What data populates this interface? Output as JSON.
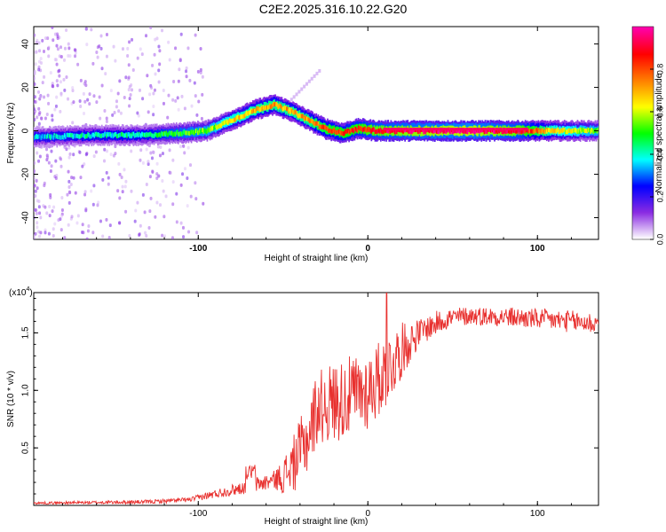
{
  "title": "C2E2.2025.316.10.22.G20",
  "colors": {
    "snr_line": "#e8312f",
    "spectrogram_bg": "#ffffff",
    "frame": "#000000"
  },
  "chart_data": [
    {
      "type": "heatmap",
      "name": "spectrogram",
      "xlabel": "Height of straight line (km)",
      "ylabel": "Frequency (Hz)",
      "xlim": [
        -197,
        136
      ],
      "ylim": [
        -50,
        48
      ],
      "xticks": [
        -100,
        0,
        100
      ],
      "yticks": [
        -40,
        -20,
        0,
        20,
        40
      ],
      "colorbar": {
        "label": "Normalized spectral amplitude",
        "range": [
          0.0,
          1.0
        ],
        "ticks": [
          "0.0",
          "0.2",
          "0.4",
          "0.6",
          "0.8"
        ],
        "tick_values": [
          0.0,
          0.2,
          0.4,
          0.6,
          0.8
        ],
        "colormap": [
          "#ffffff",
          "#8a2be2",
          "#0000ff",
          "#00ffff",
          "#00ff00",
          "#ffff00",
          "#ff7f00",
          "#ff0000",
          "#ff00aa"
        ]
      },
      "ridge": [
        {
          "x": -197,
          "f": -3,
          "amp": 0.35
        },
        {
          "x": -160,
          "f": -2,
          "amp": 0.4
        },
        {
          "x": -130,
          "f": -2,
          "amp": 0.42
        },
        {
          "x": -110,
          "f": -1,
          "amp": 0.5
        },
        {
          "x": -95,
          "f": 0,
          "amp": 0.55
        },
        {
          "x": -80,
          "f": 5,
          "amp": 0.65
        },
        {
          "x": -65,
          "f": 10,
          "amp": 0.7
        },
        {
          "x": -55,
          "f": 12,
          "amp": 0.72
        },
        {
          "x": -45,
          "f": 9,
          "amp": 0.7
        },
        {
          "x": -35,
          "f": 5,
          "amp": 0.72
        },
        {
          "x": -25,
          "f": 1,
          "amp": 0.8
        },
        {
          "x": -15,
          "f": -1,
          "amp": 0.82
        },
        {
          "x": -5,
          "f": 1,
          "amp": 0.85
        },
        {
          "x": 5,
          "f": 0,
          "amp": 0.9
        },
        {
          "x": 30,
          "f": 0,
          "amp": 0.95
        },
        {
          "x": 60,
          "f": 0,
          "amp": 0.98
        },
        {
          "x": 90,
          "f": 0,
          "amp": 0.9
        },
        {
          "x": 110,
          "f": 0,
          "amp": 0.65
        },
        {
          "x": 136,
          "f": 0,
          "amp": 0.55
        }
      ]
    },
    {
      "type": "line",
      "name": "snr",
      "xlabel": "Height of straight line (km)",
      "ylabel": "SNR (10 * v/v)",
      "exponent_label": "(x10",
      "exponent_power": "4",
      "xlim": [
        -197,
        136
      ],
      "ylim": [
        0,
        1.85
      ],
      "xticks": [
        -100,
        0,
        100
      ],
      "yticks": [
        0.5,
        1.0,
        1.5
      ],
      "ytick_labels": [
        "0.5",
        "1.0",
        "1.5"
      ],
      "envelope": [
        {
          "x": -197,
          "y": 0.02
        },
        {
          "x": -130,
          "y": 0.03
        },
        {
          "x": -105,
          "y": 0.05
        },
        {
          "x": -90,
          "y": 0.1
        },
        {
          "x": -75,
          "y": 0.15
        },
        {
          "x": -60,
          "y": 0.2
        },
        {
          "x": -50,
          "y": 0.25
        },
        {
          "x": -42,
          "y": 0.4
        },
        {
          "x": -35,
          "y": 0.6
        },
        {
          "x": -30,
          "y": 0.85
        },
        {
          "x": -20,
          "y": 0.9
        },
        {
          "x": -10,
          "y": 0.95
        },
        {
          "x": 0,
          "y": 1.0
        },
        {
          "x": 10,
          "y": 1.15
        },
        {
          "x": 20,
          "y": 1.35
        },
        {
          "x": 30,
          "y": 1.5
        },
        {
          "x": 45,
          "y": 1.62
        },
        {
          "x": 60,
          "y": 1.65
        },
        {
          "x": 80,
          "y": 1.64
        },
        {
          "x": 100,
          "y": 1.62
        },
        {
          "x": 120,
          "y": 1.6
        },
        {
          "x": 136,
          "y": 1.58
        }
      ],
      "noise": [
        {
          "x": -197,
          "a": 0.01
        },
        {
          "x": -105,
          "a": 0.02
        },
        {
          "x": -80,
          "a": 0.05
        },
        {
          "x": -55,
          "a": 0.08
        },
        {
          "x": -40,
          "a": 0.3
        },
        {
          "x": -20,
          "a": 0.35
        },
        {
          "x": 0,
          "a": 0.35
        },
        {
          "x": 15,
          "a": 0.3
        },
        {
          "x": 30,
          "a": 0.12
        },
        {
          "x": 60,
          "a": 0.08
        },
        {
          "x": 136,
          "a": 0.1
        }
      ],
      "peak": {
        "x": 11,
        "y": 1.85
      }
    }
  ]
}
